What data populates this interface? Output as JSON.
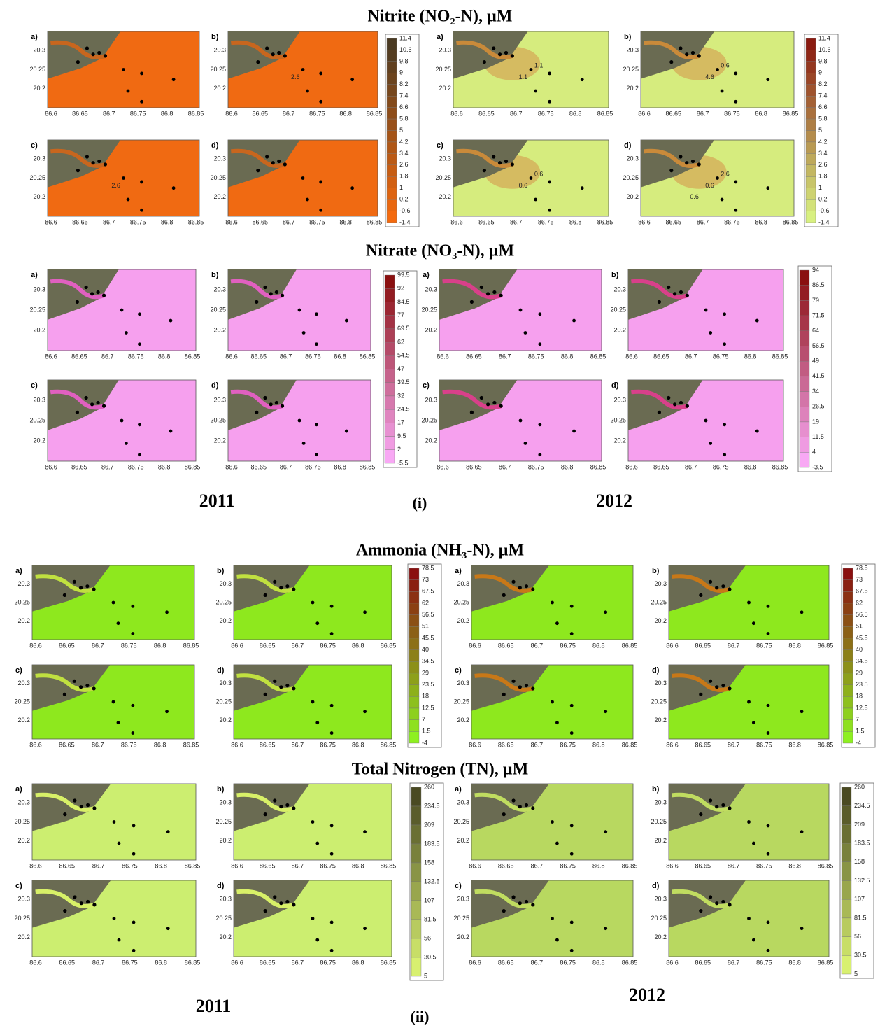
{
  "axes": {
    "x_ticks": [
      "86.6",
      "86.65",
      "86.7",
      "86.75",
      "86.8",
      "86.85"
    ],
    "y_ticks": [
      "20.3",
      "20.25",
      "20.2"
    ]
  },
  "sections": [
    {
      "title": "Nitrite (NO₂-N), µM",
      "groups": [
        {
          "panels": [
            {
              "label": "a)",
              "contours": []
            },
            {
              "label": "b)",
              "contours": [
                "2.6"
              ]
            },
            {
              "label": "c)",
              "contours": [
                "2.6"
              ]
            },
            {
              "label": "d)",
              "contours": []
            }
          ],
          "colorbar": [
            "11.4",
            "10.6",
            "9.8",
            "9",
            "8.2",
            "7.4",
            "6.6",
            "5.8",
            "5",
            "4.2",
            "3.4",
            "2.6",
            "1.8",
            "1",
            "0.2",
            "-0.6",
            "-1.4"
          ]
        },
        {
          "panels": [
            {
              "label": "a)",
              "contours": [
                "1.1",
                "1.1"
              ]
            },
            {
              "label": "b)",
              "contours": [
                "4.6",
                "0.6"
              ]
            },
            {
              "label": "c)",
              "contours": [
                "0.6",
                "0.6"
              ]
            },
            {
              "label": "d)",
              "contours": [
                "0.6",
                "2.6",
                "0.6"
              ]
            }
          ],
          "colorbar": [
            "11.4",
            "10.6",
            "9.8",
            "9",
            "8.2",
            "7.4",
            "6.6",
            "5.8",
            "5",
            "4.2",
            "3.4",
            "2.6",
            "1.8",
            "1",
            "0.2",
            "-0.6",
            "-1.4"
          ]
        }
      ]
    },
    {
      "title": "Nitrate (NO₃-N), µM",
      "groups": [
        {
          "panels": [
            {
              "label": "a)",
              "contours": []
            },
            {
              "label": "b)",
              "contours": []
            },
            {
              "label": "c)",
              "contours": []
            },
            {
              "label": "d)",
              "contours": []
            }
          ],
          "colorbar": [
            "99.5",
            "92",
            "84.5",
            "77",
            "69.5",
            "62",
            "54.5",
            "47",
            "39.5",
            "32",
            "24.5",
            "17",
            "9.5",
            "2",
            "-5.5"
          ]
        },
        {
          "panels": [
            {
              "label": "a)",
              "contours": []
            },
            {
              "label": "b)",
              "contours": []
            },
            {
              "label": "c)",
              "contours": []
            },
            {
              "label": "d)",
              "contours": []
            }
          ],
          "colorbar": [
            "94",
            "86.5",
            "79",
            "71.5",
            "64",
            "56.5",
            "49",
            "41.5",
            "34",
            "26.5",
            "19",
            "11.5",
            "4",
            "-3.5"
          ]
        }
      ]
    },
    {
      "title": "Ammonia (NH₃-N), µM",
      "groups": [
        {
          "panels": [
            {
              "label": "a)",
              "contours": []
            },
            {
              "label": "b)",
              "contours": []
            },
            {
              "label": "c)",
              "contours": []
            },
            {
              "label": "d)",
              "contours": []
            }
          ],
          "colorbar": [
            "78.5",
            "73",
            "67.5",
            "62",
            "56.5",
            "51",
            "45.5",
            "40",
            "34.5",
            "29",
            "23.5",
            "18",
            "12.5",
            "7",
            "1.5",
            "-4"
          ]
        },
        {
          "panels": [
            {
              "label": "a)",
              "contours": []
            },
            {
              "label": "b)",
              "contours": []
            },
            {
              "label": "c)",
              "contours": []
            },
            {
              "label": "d)",
              "contours": []
            }
          ],
          "colorbar": [
            "78.5",
            "73",
            "67.5",
            "62",
            "56.5",
            "51",
            "45.5",
            "40",
            "34.5",
            "29",
            "23.5",
            "18",
            "12.5",
            "7",
            "1.5",
            "-4"
          ]
        }
      ]
    },
    {
      "title": "Total Nitrogen (TN), µM",
      "groups": [
        {
          "panels": [
            {
              "label": "a)",
              "contours": []
            },
            {
              "label": "b)",
              "contours": []
            },
            {
              "label": "c)",
              "contours": []
            },
            {
              "label": "d)",
              "contours": []
            }
          ],
          "colorbar": [
            "260",
            "234.5",
            "209",
            "183.5",
            "158",
            "132.5",
            "107",
            "81.5",
            "56",
            "30.5",
            "5"
          ]
        },
        {
          "panels": [
            {
              "label": "a)",
              "contours": []
            },
            {
              "label": "b)",
              "contours": []
            },
            {
              "label": "c)",
              "contours": []
            },
            {
              "label": "d)",
              "contours": []
            }
          ],
          "colorbar": [
            "260",
            "234.5",
            "209",
            "183.5",
            "158",
            "132.5",
            "107",
            "81.5",
            "56",
            "30.5",
            "5"
          ]
        }
      ]
    }
  ],
  "footers": [
    {
      "left": "2011",
      "middle": "(i)",
      "right": "2012"
    },
    {
      "left": "2011",
      "middle": "(ii)",
      "right": "2012"
    }
  ]
}
